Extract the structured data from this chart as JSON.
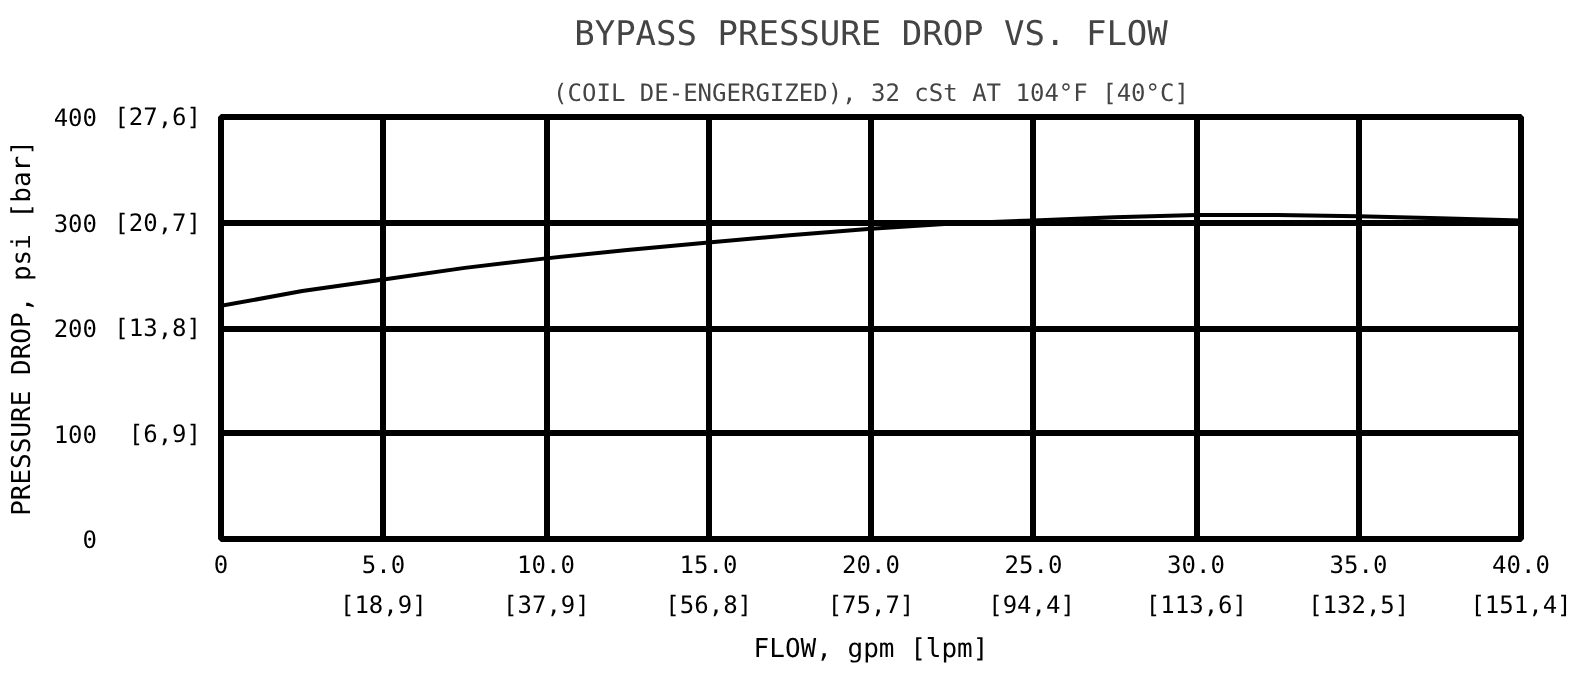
{
  "chart_data": {
    "type": "line",
    "title": "BYPASS PRESSURE DROP VS. FLOW",
    "subtitle": "(COIL DE-ENGERGIZED), 32 cSt AT 104°F [40°C]",
    "xlabel": "FLOW, gpm [lpm]",
    "ylabel": "PRESSURE DROP, psi [bar]",
    "x": [
      0,
      2.5,
      5,
      7.5,
      10,
      12.5,
      15,
      17.5,
      20,
      22.5,
      25,
      27.5,
      30,
      32.5,
      35,
      37.5,
      40
    ],
    "series": [
      {
        "color": "#000000",
        "values": [
          221,
          235,
          246,
          257,
          266,
          274,
          281,
          288,
          294,
          299,
          302,
          305,
          307,
          307,
          306,
          304,
          302
        ]
      }
    ],
    "xlim": [
      0,
      40
    ],
    "ylim": [
      0,
      400
    ],
    "xticks": [
      0,
      {
        "value": 5,
        "label": "5.0"
      },
      {
        "value": 10,
        "label": "10.0"
      },
      {
        "value": 15,
        "label": "15.0"
      },
      {
        "value": 20,
        "label": "20.0"
      },
      {
        "value": 25,
        "label": "25.0"
      },
      {
        "value": 30,
        "label": "30.0"
      },
      {
        "value": 35,
        "label": "35.0"
      },
      {
        "value": 40,
        "label": "40.0"
      }
    ],
    "x2lim": [
      0,
      151.4
    ],
    "x2ticks": [
      {
        "value": 18.9,
        "label": "[18,9]"
      },
      {
        "value": 37.9,
        "label": "[37,9]"
      },
      {
        "value": 56.8,
        "label": "[56,8]"
      },
      {
        "value": 75.7,
        "label": "[75,7]"
      },
      {
        "value": 94.4,
        "label": "[94,4]"
      },
      {
        "value": 113.6,
        "label": "[113,6]"
      },
      {
        "value": 132.5,
        "label": "[132,5]"
      },
      {
        "value": 151.4,
        "label": "[151,4]"
      }
    ],
    "yticks": [
      0,
      100,
      200,
      300,
      400
    ],
    "y2lim": [
      0,
      27.6
    ],
    "y2ticks": [
      {
        "value": 6.9,
        "label": "[6,9]"
      },
      {
        "value": 13.8,
        "label": "[13,8]"
      },
      {
        "value": 20.7,
        "label": "[20,7]"
      },
      {
        "value": 27.6,
        "label": "[27,6]"
      }
    ],
    "grid": true,
    "marker": "none",
    "line_style": "solid"
  }
}
